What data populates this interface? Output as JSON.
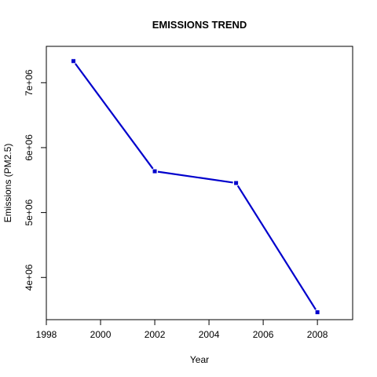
{
  "colors": {
    "series": "#0000cc",
    "axis": "#000000",
    "background": "#ffffff"
  },
  "chart_data": {
    "type": "line",
    "title": "EMISSIONS TREND",
    "xlabel": "Year",
    "ylabel": "Emissions (PM2.5)",
    "grid": false,
    "legend": "none",
    "xlim": [
      1998,
      2009.3
    ],
    "ylim": [
      3350000,
      7560000
    ],
    "x_ticks": [
      1998,
      2000,
      2002,
      2004,
      2006,
      2008
    ],
    "x_tick_labels": [
      "1998",
      "2000",
      "2002",
      "2004",
      "2006",
      "2008"
    ],
    "y_ticks": [
      4000000,
      5000000,
      6000000,
      7000000
    ],
    "y_tick_labels": [
      "4e+06",
      "5e+06",
      "6e+06",
      "7e+06"
    ],
    "series": [
      {
        "x": [
          1999,
          2002,
          2005,
          2008
        ],
        "values": [
          7332967,
          5635780,
          5454703,
          3464206
        ]
      }
    ]
  }
}
